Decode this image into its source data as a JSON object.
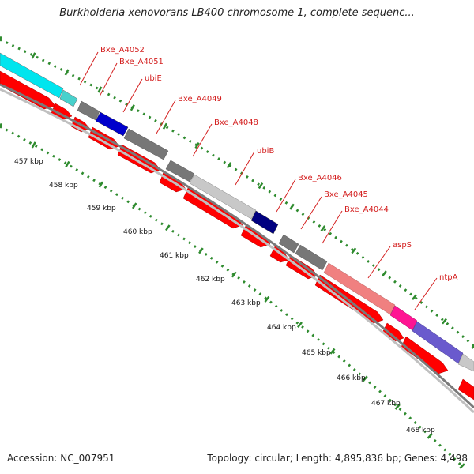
{
  "title": "Burkholderia xenovorans LB400 chromosome 1, complete sequenc...",
  "footer": {
    "accession": "Accession: NC_007951",
    "summary": "Topology: circular; Length: 4,895,836 bp; Genes: 4,498"
  },
  "ruler": {
    "labels": [
      "457 kbp",
      "458 kbp",
      "459 kbp",
      "460 kbp",
      "461 kbp",
      "462 kbp",
      "463 kbp",
      "464 kbp",
      "465 kbp",
      "466 kbp",
      "467 kbp",
      "468 kbp"
    ]
  },
  "genes": [
    {
      "name": "Bxe_A4052",
      "label_color": "#d42020"
    },
    {
      "name": "Bxe_A4051",
      "label_color": "#d42020"
    },
    {
      "name": "ubiE",
      "label_color": "#d42020"
    },
    {
      "name": "Bxe_A4049",
      "label_color": "#d42020"
    },
    {
      "name": "Bxe_A4048",
      "label_color": "#d42020"
    },
    {
      "name": "ubiB",
      "label_color": "#d42020"
    },
    {
      "name": "Bxe_A4046",
      "label_color": "#d42020"
    },
    {
      "name": "Bxe_A4045",
      "label_color": "#d42020"
    },
    {
      "name": "Bxe_A4044",
      "label_color": "#d42020"
    },
    {
      "name": "aspS",
      "label_color": "#d42020"
    },
    {
      "name": "ntpA",
      "label_color": "#d42020"
    }
  ],
  "colors": {
    "cds_arrow": "#ff0000",
    "backbone": "#999999",
    "tick": "#2e8b2e",
    "feature_cyan": "#00e5ee",
    "feature_grey": "#777777",
    "feature_blue": "#0000cc",
    "feature_lightgrey": "#c8c8c8",
    "feature_navy": "#000080",
    "feature_salmon": "#f08080",
    "feature_pink": "#ff1493",
    "feature_purple": "#6a5acd"
  }
}
